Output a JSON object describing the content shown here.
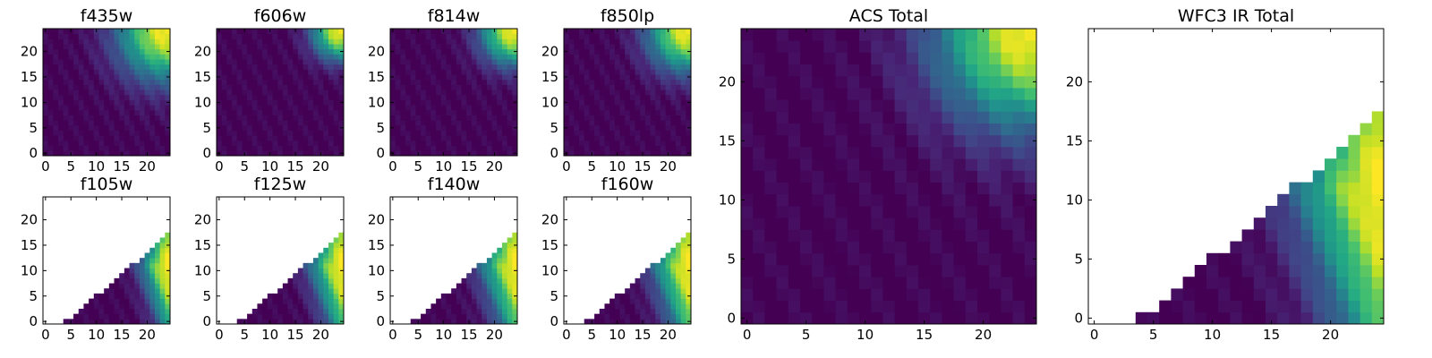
{
  "chart_data": [
    {
      "type": "heatmap",
      "title": "f435w",
      "xlim": [
        0,
        24
      ],
      "ylim": [
        0,
        24
      ],
      "xticks": [
        0,
        5,
        10,
        15,
        20
      ],
      "yticks": [
        0,
        5,
        10,
        15,
        20
      ],
      "coverage": "full",
      "peak_corner": "top-right",
      "peak_strength": 1.0,
      "spread": 0.55,
      "colormap": "viridis"
    },
    {
      "type": "heatmap",
      "title": "f606w",
      "xlim": [
        0,
        24
      ],
      "ylim": [
        0,
        24
      ],
      "xticks": [
        0,
        5,
        10,
        15,
        20
      ],
      "yticks": [
        0,
        5,
        10,
        15,
        20
      ],
      "coverage": "full",
      "peak_corner": "top-right",
      "peak_strength": 1.0,
      "spread": 0.32,
      "colormap": "viridis"
    },
    {
      "type": "heatmap",
      "title": "f814w",
      "xlim": [
        0,
        24
      ],
      "ylim": [
        0,
        24
      ],
      "xticks": [
        0,
        5,
        10,
        15,
        20
      ],
      "yticks": [
        0,
        5,
        10,
        15,
        20
      ],
      "coverage": "full",
      "peak_corner": "top-right",
      "peak_strength": 1.0,
      "spread": 0.38,
      "colormap": "viridis"
    },
    {
      "type": "heatmap",
      "title": "f850lp",
      "xlim": [
        0,
        24
      ],
      "ylim": [
        0,
        24
      ],
      "xticks": [
        0,
        5,
        10,
        15,
        20
      ],
      "yticks": [
        0,
        5,
        10,
        15,
        20
      ],
      "coverage": "full",
      "peak_corner": "top-right",
      "peak_strength": 1.0,
      "spread": 0.45,
      "colormap": "viridis"
    },
    {
      "type": "heatmap",
      "title": "f105w",
      "xlim": [
        0,
        24
      ],
      "ylim": [
        0,
        24
      ],
      "xticks": [
        0,
        5,
        10,
        15,
        20
      ],
      "yticks": [
        0,
        5,
        10,
        15,
        20
      ],
      "coverage": "lower-right triangle",
      "peak_corner": "right edge",
      "peak_strength": 1.0,
      "spread": 0.3,
      "colormap": "viridis"
    },
    {
      "type": "heatmap",
      "title": "f125w",
      "xlim": [
        0,
        24
      ],
      "ylim": [
        0,
        24
      ],
      "xticks": [
        0,
        5,
        10,
        15,
        20
      ],
      "yticks": [
        0,
        5,
        10,
        15,
        20
      ],
      "coverage": "lower-right triangle",
      "peak_corner": "right edge",
      "peak_strength": 1.0,
      "spread": 0.35,
      "colormap": "viridis"
    },
    {
      "type": "heatmap",
      "title": "f140w",
      "xlim": [
        0,
        24
      ],
      "ylim": [
        0,
        24
      ],
      "xticks": [
        0,
        5,
        10,
        15,
        20
      ],
      "yticks": [
        0,
        5,
        10,
        15,
        20
      ],
      "coverage": "lower-right triangle",
      "peak_corner": "right edge",
      "peak_strength": 1.0,
      "spread": 0.38,
      "colormap": "viridis"
    },
    {
      "type": "heatmap",
      "title": "f160w",
      "xlim": [
        0,
        24
      ],
      "ylim": [
        0,
        24
      ],
      "xticks": [
        0,
        5,
        10,
        15,
        20
      ],
      "yticks": [
        0,
        5,
        10,
        15,
        20
      ],
      "coverage": "lower-right triangle",
      "peak_corner": "right edge",
      "peak_strength": 1.0,
      "spread": 0.4,
      "colormap": "viridis"
    },
    {
      "type": "heatmap",
      "title": "ACS Total",
      "xlim": [
        0,
        24
      ],
      "ylim": [
        0,
        24
      ],
      "xticks": [
        0,
        5,
        10,
        15,
        20
      ],
      "yticks": [
        0,
        5,
        10,
        15,
        20
      ],
      "coverage": "full",
      "peak_corner": "top-right",
      "peak_strength": 1.0,
      "spread": 0.45,
      "colormap": "viridis"
    },
    {
      "type": "heatmap",
      "title": "WFC3 IR Total",
      "xlim": [
        0,
        24
      ],
      "ylim": [
        0,
        24
      ],
      "xticks": [
        0,
        5,
        10,
        15,
        20
      ],
      "yticks": [
        0,
        5,
        10,
        15,
        20
      ],
      "coverage": "lower-right triangle",
      "peak_corner": "right edge",
      "peak_strength": 1.0,
      "spread": 0.4,
      "colormap": "viridis"
    }
  ]
}
